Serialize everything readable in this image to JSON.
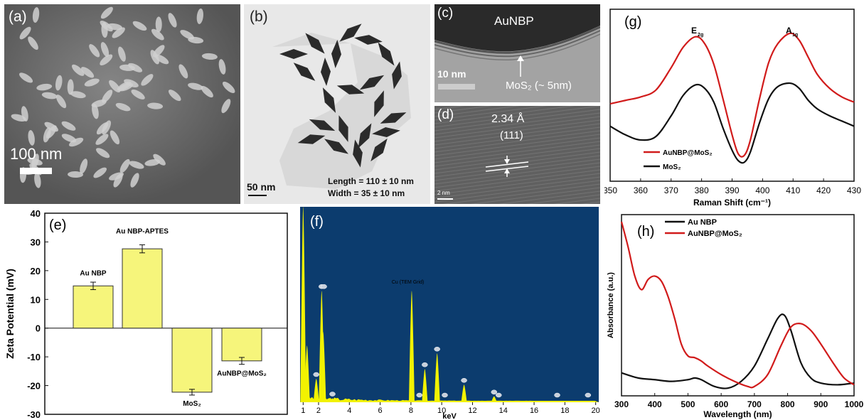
{
  "panels": {
    "a": {
      "label": "(a)",
      "scale_text": "100 nm"
    },
    "b": {
      "label": "(b)",
      "scale_text": "50 nm",
      "length_text": "Length = 110 ± 10 nm",
      "width_text": "Width = 35 ± 10 nm"
    },
    "c": {
      "label": "(c)",
      "title": "AuNBP",
      "scale_text": "10 nm",
      "annotation": "MoS₂ (~ 5nm)"
    },
    "d": {
      "label": "(d)",
      "spacing": "2.34 Å",
      "plane": "(111)",
      "scale_text": "2 nm"
    }
  },
  "chart_data": [
    {
      "id": "g",
      "label": "(g)",
      "type": "line",
      "xlabel": "Raman Shift (cm⁻¹)",
      "ylabel": "",
      "xlim": [
        350,
        430
      ],
      "ylim": [
        0,
        1
      ],
      "xticks": [
        350,
        360,
        370,
        380,
        390,
        400,
        410,
        420,
        430
      ],
      "peak_labels": [
        {
          "text": "E",
          "sub": "2g",
          "x": 378
        },
        {
          "text": "A",
          "sub": "1g",
          "x": 409
        }
      ],
      "series": [
        {
          "name": "AuNBP@MoS₂",
          "color": "#d11b1b",
          "x": [
            350,
            355,
            360,
            365,
            370,
            374,
            378,
            381,
            384,
            387,
            390,
            392,
            394,
            396,
            399,
            402,
            405,
            409,
            412,
            415,
            418,
            422,
            426,
            430
          ],
          "y": [
            0.45,
            0.47,
            0.49,
            0.53,
            0.66,
            0.78,
            0.84,
            0.8,
            0.68,
            0.48,
            0.27,
            0.16,
            0.15,
            0.24,
            0.48,
            0.69,
            0.8,
            0.86,
            0.82,
            0.72,
            0.62,
            0.54,
            0.49,
            0.46
          ]
        },
        {
          "name": "MoS₂",
          "color": "#111111",
          "x": [
            350,
            355,
            360,
            365,
            370,
            374,
            378,
            381,
            384,
            387,
            390,
            392,
            394,
            396,
            399,
            402,
            405,
            409,
            412,
            415,
            418,
            422,
            426,
            430
          ],
          "y": [
            0.32,
            0.27,
            0.24,
            0.26,
            0.38,
            0.5,
            0.56,
            0.54,
            0.46,
            0.31,
            0.18,
            0.12,
            0.11,
            0.17,
            0.34,
            0.48,
            0.55,
            0.57,
            0.54,
            0.47,
            0.42,
            0.38,
            0.35,
            0.32
          ]
        }
      ]
    },
    {
      "id": "e",
      "label": "(e)",
      "type": "bar",
      "xlabel": "",
      "ylabel": "Zeta Potential (mV)",
      "ylim": [
        -30,
        40
      ],
      "yticks": [
        -30,
        -20,
        -10,
        0,
        10,
        20,
        30,
        40
      ],
      "bar_color": "#f6f57b",
      "categories": [
        "Au NBP",
        "Au NBP-APTES",
        "MoS₂",
        "AuNBP@MoS₂"
      ],
      "values": [
        14.7,
        27.6,
        -22.3,
        -11.4
      ],
      "errors": [
        1.3,
        1.4,
        1.0,
        1.2
      ]
    },
    {
      "id": "f",
      "label": "(f)",
      "type": "bar",
      "xlabel": "keV",
      "ylabel": "",
      "xlim": [
        0.8,
        20.2
      ],
      "ylim": [
        0,
        1
      ],
      "xticks": [
        1,
        2,
        4,
        6,
        8,
        10,
        12,
        14,
        16,
        18,
        20
      ],
      "background": "#0c3c6e",
      "color": "#f2f200",
      "annotation": {
        "text": "Cu (TEM Grid)",
        "x": 8.0
      },
      "peaks": [
        {
          "x": 1.0,
          "h": 1.0
        },
        {
          "x": 1.25,
          "h": 0.29
        },
        {
          "x": 1.85,
          "h": 0.12
        },
        {
          "x": 2.2,
          "h": 0.57
        },
        {
          "x": 2.3,
          "h": 0.36
        },
        {
          "x": 2.9,
          "h": 0.02
        },
        {
          "x": 8.05,
          "h": 0.57
        },
        {
          "x": 8.9,
          "h": 0.17
        },
        {
          "x": 9.7,
          "h": 0.25
        },
        {
          "x": 11.45,
          "h": 0.09
        },
        {
          "x": 13.4,
          "h": 0.03
        }
      ],
      "markers": [
        1.85,
        2.2,
        2.35,
        2.9,
        8.9,
        9.7,
        10.2,
        11.45,
        13.4,
        13.7,
        17.5,
        19.5,
        8.55
      ]
    },
    {
      "id": "h",
      "label": "(h)",
      "type": "line",
      "xlabel": "Wavelength (nm)",
      "ylabel": "Absorbance (a.u.)",
      "xlim": [
        300,
        1000
      ],
      "ylim": [
        0,
        1
      ],
      "xticks": [
        300,
        400,
        500,
        600,
        700,
        800,
        900,
        1000
      ],
      "series": [
        {
          "name": "Au NBP",
          "color": "#111111",
          "x": [
            300,
            350,
            400,
            450,
            500,
            520,
            540,
            580,
            620,
            660,
            700,
            740,
            770,
            790,
            810,
            840,
            870,
            900,
            950,
            1000
          ],
          "y": [
            0.11,
            0.08,
            0.07,
            0.06,
            0.07,
            0.08,
            0.07,
            0.03,
            0.02,
            0.06,
            0.15,
            0.31,
            0.43,
            0.45,
            0.36,
            0.17,
            0.08,
            0.05,
            0.04,
            0.05
          ]
        },
        {
          "name": "AuNBP@MoS₂",
          "color": "#d11b1b",
          "x": [
            300,
            320,
            340,
            360,
            380,
            400,
            420,
            440,
            460,
            480,
            500,
            520,
            540,
            560,
            600,
            640,
            680,
            700,
            740,
            780,
            810,
            840,
            870,
            900,
            940,
            970,
            1000
          ],
          "y": [
            1.0,
            0.85,
            0.68,
            0.6,
            0.66,
            0.68,
            0.65,
            0.56,
            0.43,
            0.28,
            0.21,
            0.2,
            0.18,
            0.15,
            0.1,
            0.06,
            0.03,
            0.03,
            0.1,
            0.27,
            0.38,
            0.4,
            0.36,
            0.28,
            0.16,
            0.08,
            0.04
          ]
        }
      ]
    }
  ]
}
